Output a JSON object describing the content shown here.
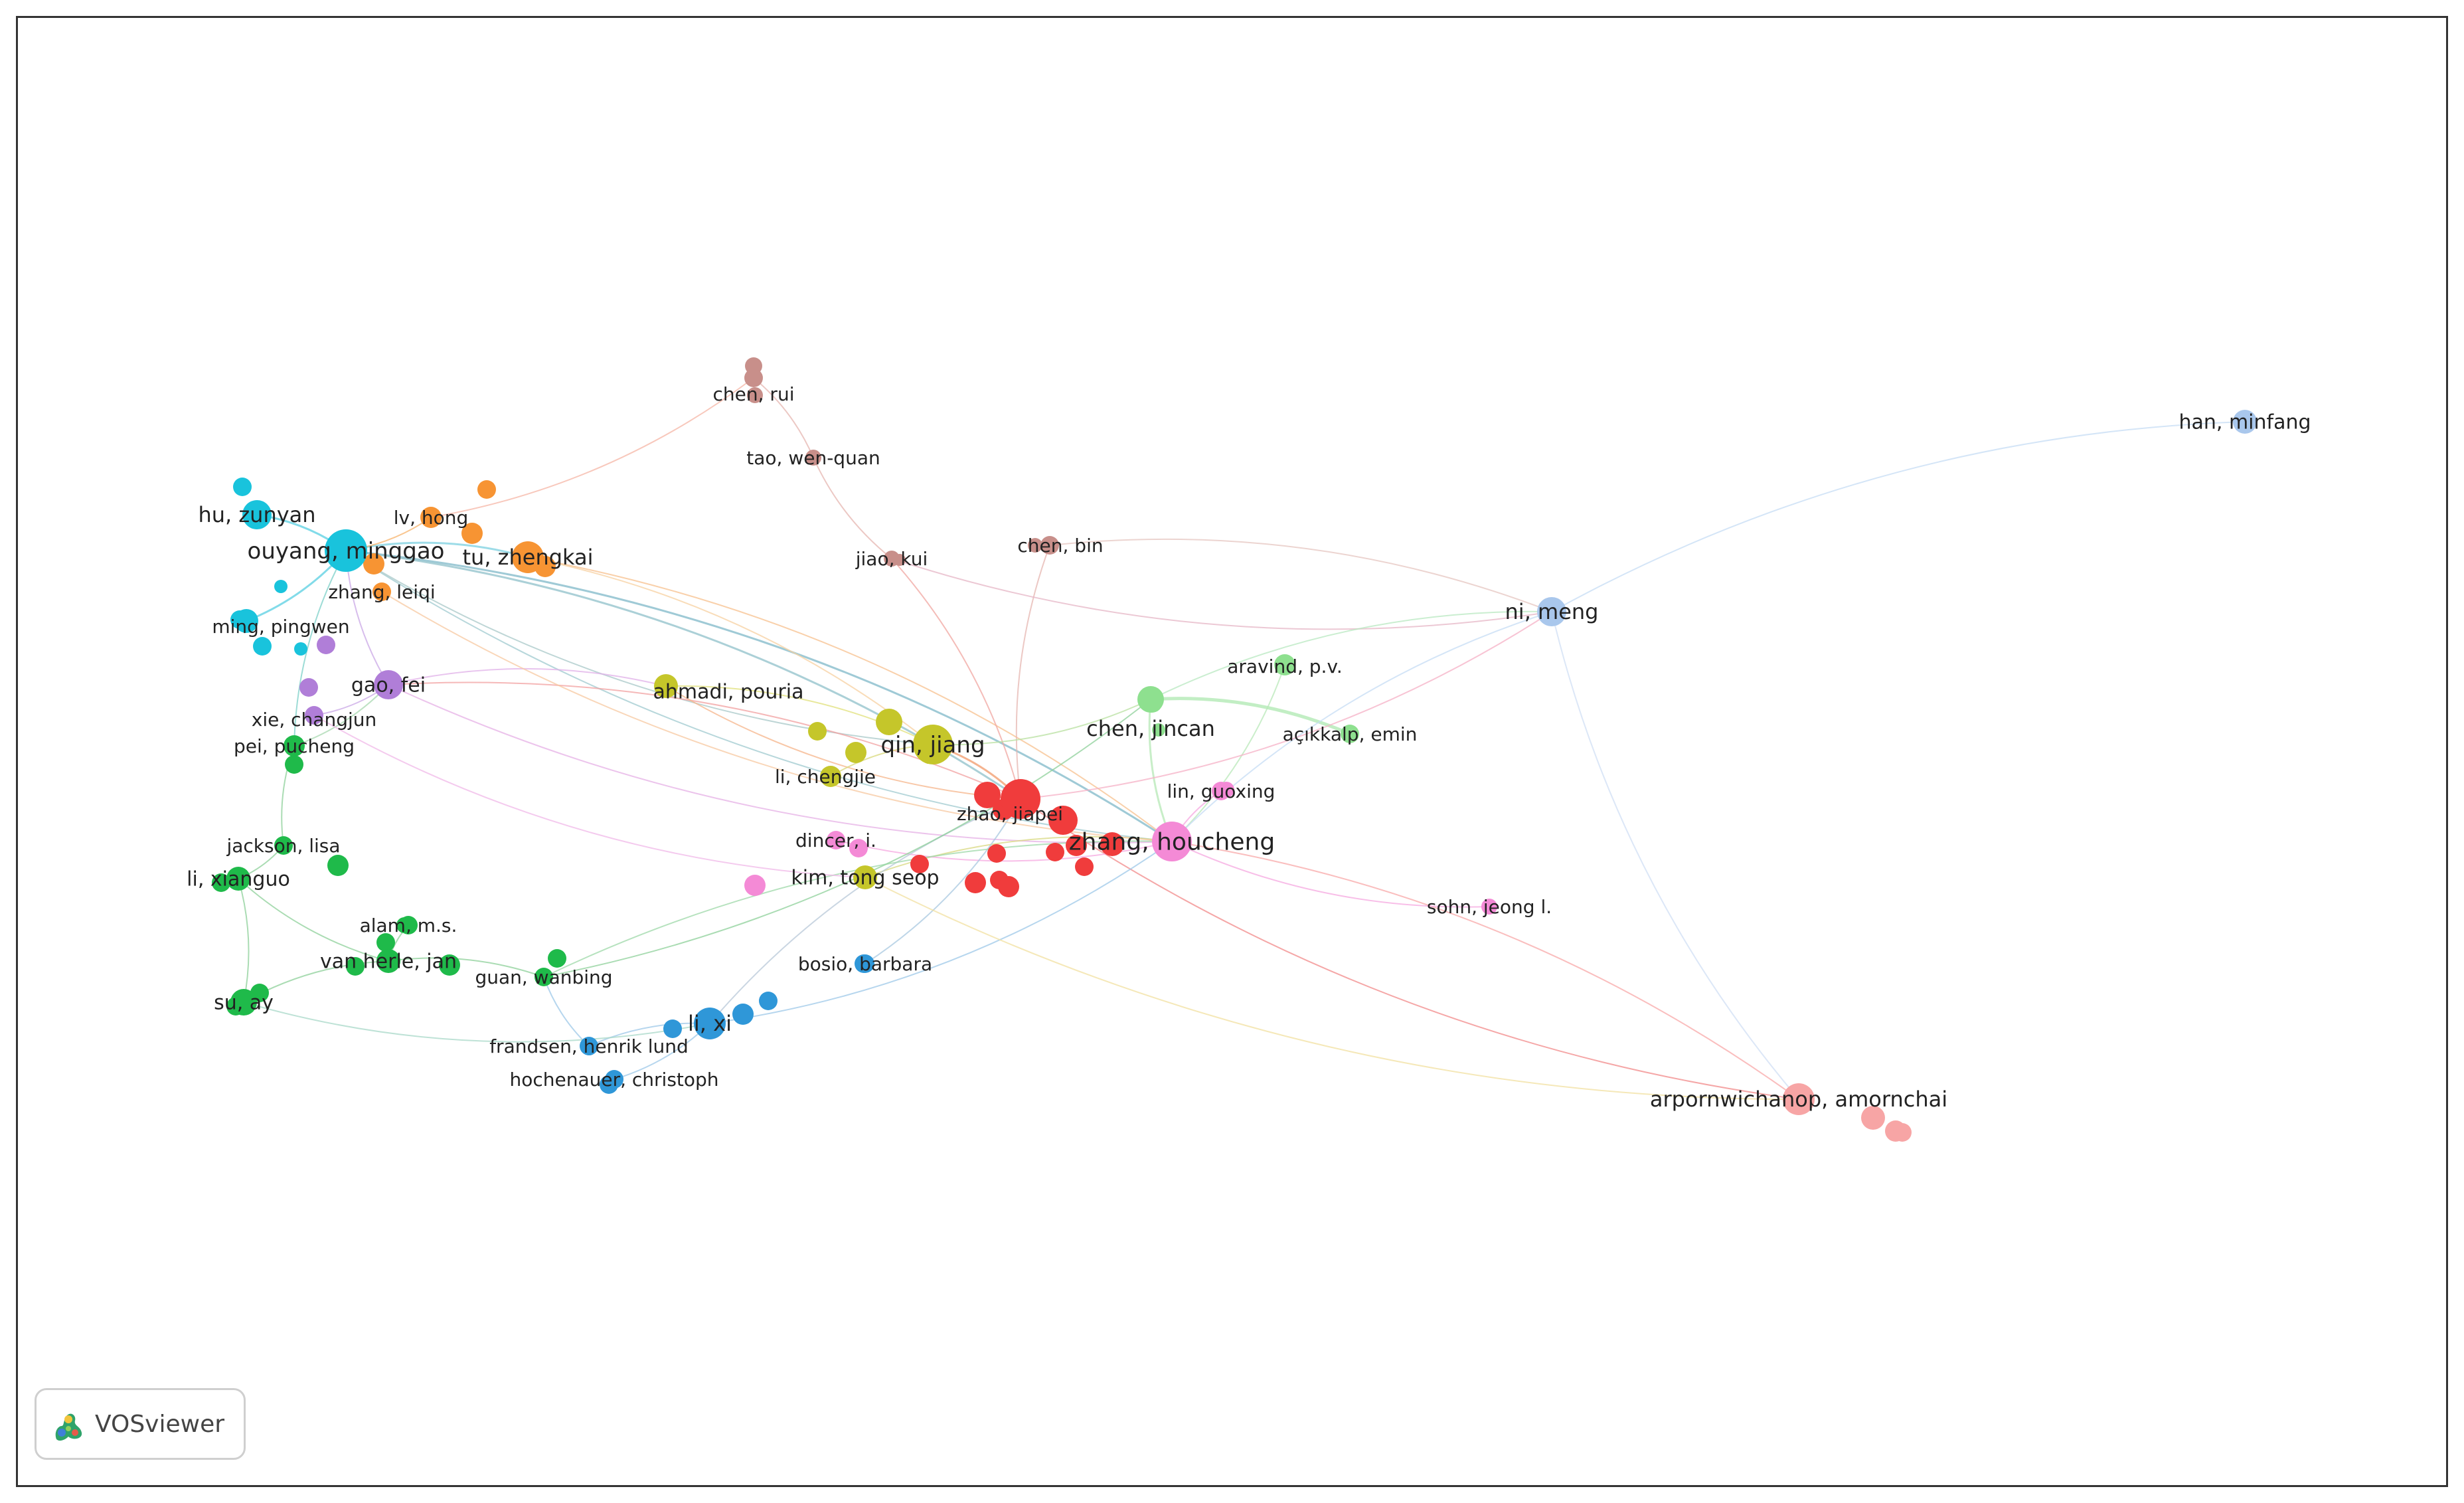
{
  "brand": {
    "name": "VOSviewer",
    "icon": "vosviewer-logo-icon"
  },
  "clusters": {
    "red": "#f03c3c",
    "pink": "#f48ad6",
    "yellow": "#c5c62a",
    "cyan": "#19c3dc",
    "orange": "#f79433",
    "purple": "#b07ed8",
    "green": "#1fba4a",
    "blue": "#2f97d8",
    "lightgreen": "#8ee08f",
    "brown": "#c88f8a",
    "lightblue": "#a9c7ec",
    "salmon": "#f7a5a5"
  },
  "nodes": [
    {
      "id": "chen_rui",
      "label": "chen, rui",
      "cluster": "brown"
    },
    {
      "id": "tao_wq",
      "label": "tao, wen-quan",
      "cluster": "brown"
    },
    {
      "id": "han_minfang",
      "label": "han, minfang",
      "cluster": "lightblue"
    },
    {
      "id": "hu_zunyan",
      "label": "hu, zunyan",
      "cluster": "cyan"
    },
    {
      "id": "lv_hong",
      "label": "lv, hong",
      "cluster": "orange"
    },
    {
      "id": "ouyang_minggao",
      "label": "ouyang, minggao",
      "cluster": "cyan"
    },
    {
      "id": "tu_zhengkai",
      "label": "tu, zhengkai",
      "cluster": "orange"
    },
    {
      "id": "jiao_kui",
      "label": "jiao, kui",
      "cluster": "brown"
    },
    {
      "id": "chen_bin",
      "label": "chen, bin",
      "cluster": "brown"
    },
    {
      "id": "zhang_leiqi",
      "label": "zhang, leiqi",
      "cluster": "orange"
    },
    {
      "id": "ni_meng",
      "label": "ni, meng",
      "cluster": "lightblue"
    },
    {
      "id": "ming_pingwen",
      "label": "ming, pingwen",
      "cluster": "cyan"
    },
    {
      "id": "aravind_pv",
      "label": "aravind, p.v.",
      "cluster": "lightgreen"
    },
    {
      "id": "gao_fei",
      "label": "gao, fei",
      "cluster": "purple"
    },
    {
      "id": "ahmadi_pouria",
      "label": "ahmadi, pouria",
      "cluster": "yellow"
    },
    {
      "id": "xie_changjun",
      "label": "xie, changjun",
      "cluster": "purple"
    },
    {
      "id": "chen_jincan",
      "label": "chen, jincan",
      "cluster": "lightgreen"
    },
    {
      "id": "acikkalp_emin",
      "label": "açıkkalp, emin",
      "cluster": "lightgreen"
    },
    {
      "id": "qin_jiang",
      "label": "qin, jiang",
      "cluster": "yellow"
    },
    {
      "id": "pei_pucheng",
      "label": "pei, pucheng",
      "cluster": "green"
    },
    {
      "id": "li_chengjie",
      "label": "li, chengjie",
      "cluster": "yellow"
    },
    {
      "id": "lin_guoxing",
      "label": "lin, guoxing",
      "cluster": "pink"
    },
    {
      "id": "zhao_jiapei",
      "label": "zhao, jiapei",
      "cluster": "red"
    },
    {
      "id": "dincer_i",
      "label": "dincer, i.",
      "cluster": "pink"
    },
    {
      "id": "zhang_houcheng",
      "label": "zhang, houcheng",
      "cluster": "pink"
    },
    {
      "id": "jackson_lisa",
      "label": "jackson, lisa",
      "cluster": "green"
    },
    {
      "id": "li_xianguo",
      "label": "li, xianguo",
      "cluster": "green"
    },
    {
      "id": "kim_tongseop",
      "label": "kim, tong seop",
      "cluster": "yellow"
    },
    {
      "id": "sohn_jeongl",
      "label": "sohn, jeong l.",
      "cluster": "pink"
    },
    {
      "id": "alam_ms",
      "label": "alam, m.s.",
      "cluster": "green"
    },
    {
      "id": "van_herle_jan",
      "label": "van herle, jan",
      "cluster": "green"
    },
    {
      "id": "bosio_barbara",
      "label": "bosio, barbara",
      "cluster": "blue"
    },
    {
      "id": "guan_wanbing",
      "label": "guan, wanbing",
      "cluster": "green"
    },
    {
      "id": "su_ay",
      "label": "su, ay",
      "cluster": "green"
    },
    {
      "id": "li_xi",
      "label": "li, xi",
      "cluster": "blue"
    },
    {
      "id": "frandsen_hl",
      "label": "frandsen, henrik lund",
      "cluster": "blue"
    },
    {
      "id": "arpornwichanop",
      "label": "arpornwichanop, amornchai",
      "cluster": "salmon"
    },
    {
      "id": "hochenauer",
      "label": "hochenauer, christoph",
      "cluster": "blue"
    }
  ]
}
